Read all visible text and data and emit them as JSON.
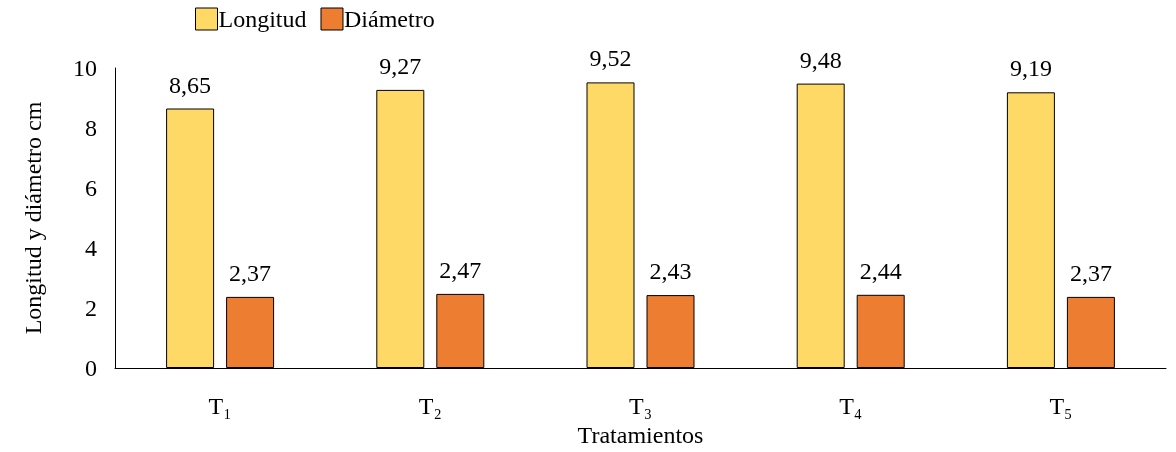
{
  "chart_data": {
    "type": "bar",
    "xlabel": "Tratamientos",
    "ylabel": "Longitud y diámetro cm",
    "categories": [
      "T₁",
      "T₂",
      "T₃",
      "T₄",
      "T₅"
    ],
    "series": [
      {
        "name": "Longitud",
        "color": "#ffd966",
        "values": [
          8.65,
          9.27,
          9.52,
          9.48,
          9.19
        ],
        "value_labels": [
          "8,65",
          "9,27",
          "9,52",
          "9,48",
          "9,19"
        ]
      },
      {
        "name": "Diámetro",
        "color": "#ed7d31",
        "values": [
          2.37,
          2.47,
          2.43,
          2.44,
          2.37
        ],
        "value_labels": [
          "2,37",
          "2,47",
          "2,43",
          "2,44",
          "2,37"
        ]
      }
    ],
    "ylim": [
      0,
      10
    ],
    "yticks": [
      0,
      2,
      4,
      6,
      8,
      10
    ],
    "grid": false,
    "legend": "top left"
  }
}
